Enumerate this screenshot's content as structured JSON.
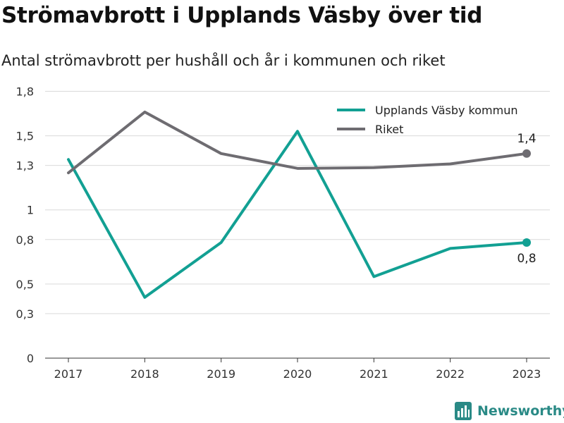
{
  "title": "Strömavbrott i Upplands Väsby över tid",
  "subtitle": "Antal strömavbrott per hushåll och år i kommunen och riket",
  "brand": {
    "name": "Newsworthy",
    "icon": "newsworthy-logo-icon",
    "color": "#2a8a86"
  },
  "chart_data": {
    "type": "line",
    "x": [
      2017,
      2018,
      2019,
      2020,
      2021,
      2022,
      2023
    ],
    "y_ticks": [
      0,
      0.3,
      0.5,
      0.8,
      1,
      1.3,
      1.5,
      1.8
    ],
    "y_tick_labels": [
      "0",
      "0,3",
      "0,5",
      "0,8",
      "1",
      "1,3",
      "1,5",
      "1,8"
    ],
    "ylim": [
      0,
      1.75
    ],
    "grid": true,
    "legend_position": "top-right",
    "series": [
      {
        "name": "Upplands Väsby kommun",
        "color": "#12a093",
        "values": [
          1.34,
          0.41,
          0.78,
          1.53,
          0.55,
          0.74,
          0.78
        ],
        "end_label": "0,8",
        "end_label_position": "below"
      },
      {
        "name": "Riket",
        "color": "#6e6c71",
        "values": [
          1.25,
          1.66,
          1.38,
          1.28,
          1.285,
          1.31,
          1.38
        ],
        "end_label": "1,4",
        "end_label_position": "above"
      }
    ]
  }
}
